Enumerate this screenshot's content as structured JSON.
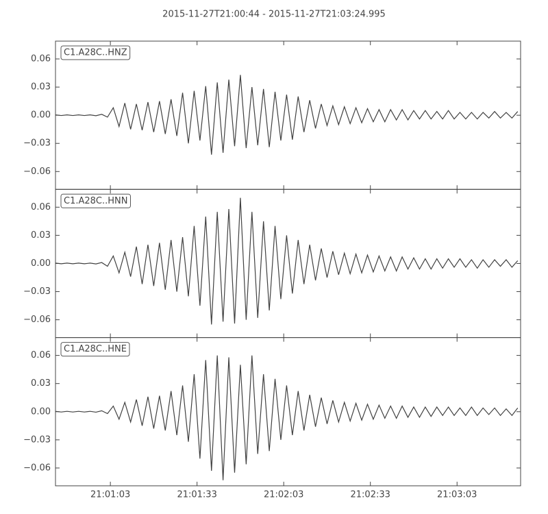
{
  "title": "2015-11-27T21:00:44  -  2015-11-27T21:03:24.995",
  "chart_data": [
    {
      "type": "line",
      "xlim": [
        0,
        160.995
      ],
      "ylim": [
        -0.079,
        0.079
      ],
      "yticks": [
        {
          "value": -0.06,
          "label": "−0.06"
        },
        {
          "value": -0.03,
          "label": "−0.03"
        },
        {
          "value": 0,
          "label": "0.00"
        },
        0.03,
        0.06
      ],
      "x": [
        0,
        2,
        4,
        6,
        8,
        10,
        12,
        14,
        16,
        18,
        20,
        22,
        24,
        26,
        28,
        30,
        32,
        34,
        36,
        38,
        40,
        42,
        44,
        46,
        48,
        50,
        52,
        54,
        56,
        58,
        60,
        62,
        64,
        66,
        68,
        70,
        72,
        74,
        76,
        78,
        80,
        82,
        84,
        86,
        88,
        90,
        92,
        94,
        96,
        98,
        100,
        102,
        104,
        106,
        108,
        110,
        112,
        114,
        116,
        118,
        120,
        122,
        124,
        126,
        128,
        130,
        132,
        134,
        136,
        138,
        140,
        142,
        144,
        146,
        148,
        150,
        152,
        154,
        156,
        158,
        160
      ],
      "series": [
        {
          "name": "C1.A28C..HNZ",
          "color": "#404040",
          "values": [
            0.0004,
            -0.0003,
            0.0004,
            -0.0003,
            0.0004,
            -0.0003,
            0.0004,
            -0.0005,
            0.001,
            -0.002,
            0.008,
            -0.012,
            0.013,
            -0.015,
            0.012,
            -0.016,
            0.014,
            -0.018,
            0.015,
            -0.02,
            0.017,
            -0.022,
            0.024,
            -0.03,
            0.026,
            -0.027,
            0.031,
            -0.042,
            0.035,
            -0.04,
            0.038,
            -0.033,
            0.043,
            -0.035,
            0.03,
            -0.032,
            0.028,
            -0.034,
            0.025,
            -0.027,
            0.022,
            -0.026,
            0.02,
            -0.018,
            0.016,
            -0.014,
            0.012,
            -0.011,
            0.01,
            -0.01,
            0.009,
            -0.009,
            0.008,
            -0.008,
            0.007,
            -0.007,
            0.006,
            -0.007,
            0.006,
            -0.005,
            0.006,
            -0.005,
            0.005,
            -0.004,
            0.005,
            -0.004,
            0.004,
            -0.004,
            0.005,
            -0.004,
            0.003,
            -0.004,
            0.003,
            -0.004,
            0.003,
            -0.003,
            0.004,
            -0.003,
            0.003,
            -0.003,
            0.004
          ]
        }
      ]
    },
    {
      "type": "line",
      "xlim": [
        0,
        160.995
      ],
      "ylim": [
        -0.079,
        0.079
      ],
      "yticks": [
        {
          "value": -0.06,
          "label": "−0.06"
        },
        {
          "value": -0.03,
          "label": "−0.03"
        },
        {
          "value": 0,
          "label": "0.00"
        },
        0.03,
        0.06
      ],
      "x": [
        0,
        2,
        4,
        6,
        8,
        10,
        12,
        14,
        16,
        18,
        20,
        22,
        24,
        26,
        28,
        30,
        32,
        34,
        36,
        38,
        40,
        42,
        44,
        46,
        48,
        50,
        52,
        54,
        56,
        58,
        60,
        62,
        64,
        66,
        68,
        70,
        72,
        74,
        76,
        78,
        80,
        82,
        84,
        86,
        88,
        90,
        92,
        94,
        96,
        98,
        100,
        102,
        104,
        106,
        108,
        110,
        112,
        114,
        116,
        118,
        120,
        122,
        124,
        126,
        128,
        130,
        132,
        134,
        136,
        138,
        140,
        142,
        144,
        146,
        148,
        150,
        152,
        154,
        156,
        158,
        160
      ],
      "series": [
        {
          "name": "C1.A28C..HNN",
          "color": "#404040",
          "values": [
            0.0004,
            -0.0003,
            0.0004,
            -0.0003,
            0.0004,
            -0.0003,
            0.0004,
            -0.0005,
            0.001,
            -0.003,
            0.008,
            -0.01,
            0.012,
            -0.014,
            0.018,
            -0.022,
            0.02,
            -0.024,
            0.022,
            -0.028,
            0.025,
            -0.03,
            0.028,
            -0.035,
            0.04,
            -0.045,
            0.05,
            -0.065,
            0.055,
            -0.062,
            0.058,
            -0.064,
            0.07,
            -0.06,
            0.055,
            -0.058,
            0.045,
            -0.05,
            0.04,
            -0.038,
            0.03,
            -0.032,
            0.025,
            -0.022,
            0.02,
            -0.018,
            0.016,
            -0.015,
            0.013,
            -0.012,
            0.011,
            -0.011,
            0.01,
            -0.01,
            0.009,
            -0.009,
            0.008,
            -0.008,
            0.007,
            -0.008,
            0.007,
            -0.006,
            0.006,
            -0.006,
            0.005,
            -0.006,
            0.005,
            -0.005,
            0.005,
            -0.004,
            0.005,
            -0.004,
            0.004,
            -0.005,
            0.004,
            -0.004,
            0.004,
            -0.003,
            0.004,
            -0.004,
            0.003
          ]
        }
      ]
    },
    {
      "type": "line",
      "xlim": [
        0,
        160.995
      ],
      "ylim": [
        -0.079,
        0.079
      ],
      "yticks": [
        {
          "value": -0.06,
          "label": "−0.06"
        },
        {
          "value": -0.03,
          "label": "−0.03"
        },
        {
          "value": 0,
          "label": "0.00"
        },
        0.03,
        0.06
      ],
      "xticks": [
        {
          "value": 19,
          "label": "21:01:03"
        },
        {
          "value": 49,
          "label": "21:01:33"
        },
        {
          "value": 79,
          "label": "21:02:03"
        },
        {
          "value": 109,
          "label": "21:02:33"
        },
        {
          "value": 139,
          "label": "21:03:03"
        }
      ],
      "x": [
        0,
        2,
        4,
        6,
        8,
        10,
        12,
        14,
        16,
        18,
        20,
        22,
        24,
        26,
        28,
        30,
        32,
        34,
        36,
        38,
        40,
        42,
        44,
        46,
        48,
        50,
        52,
        54,
        56,
        58,
        60,
        62,
        64,
        66,
        68,
        70,
        72,
        74,
        76,
        78,
        80,
        82,
        84,
        86,
        88,
        90,
        92,
        94,
        96,
        98,
        100,
        102,
        104,
        106,
        108,
        110,
        112,
        114,
        116,
        118,
        120,
        122,
        124,
        126,
        128,
        130,
        132,
        134,
        136,
        138,
        140,
        142,
        144,
        146,
        148,
        150,
        152,
        154,
        156,
        158,
        160
      ],
      "series": [
        {
          "name": "C1.A28C..HNE",
          "color": "#404040",
          "values": [
            0.0004,
            -0.0003,
            0.0004,
            -0.0003,
            0.0004,
            -0.0003,
            0.0004,
            -0.0005,
            0.001,
            -0.002,
            0.006,
            -0.008,
            0.01,
            -0.011,
            0.013,
            -0.015,
            0.016,
            -0.018,
            0.017,
            -0.02,
            0.022,
            -0.025,
            0.028,
            -0.032,
            0.04,
            -0.05,
            0.055,
            -0.063,
            0.06,
            -0.073,
            0.058,
            -0.065,
            0.05,
            -0.056,
            0.06,
            -0.045,
            0.04,
            -0.042,
            0.035,
            -0.03,
            0.028,
            -0.025,
            0.022,
            -0.02,
            0.018,
            -0.016,
            0.015,
            -0.013,
            0.012,
            -0.011,
            0.01,
            -0.01,
            0.009,
            -0.009,
            0.008,
            -0.008,
            0.007,
            -0.007,
            0.006,
            -0.007,
            0.006,
            -0.006,
            0.005,
            -0.006,
            0.005,
            -0.005,
            0.005,
            -0.004,
            0.005,
            -0.004,
            0.004,
            -0.004,
            0.005,
            -0.004,
            0.004,
            -0.003,
            0.004,
            -0.004,
            0.003,
            -0.004,
            0.004
          ]
        }
      ]
    }
  ]
}
